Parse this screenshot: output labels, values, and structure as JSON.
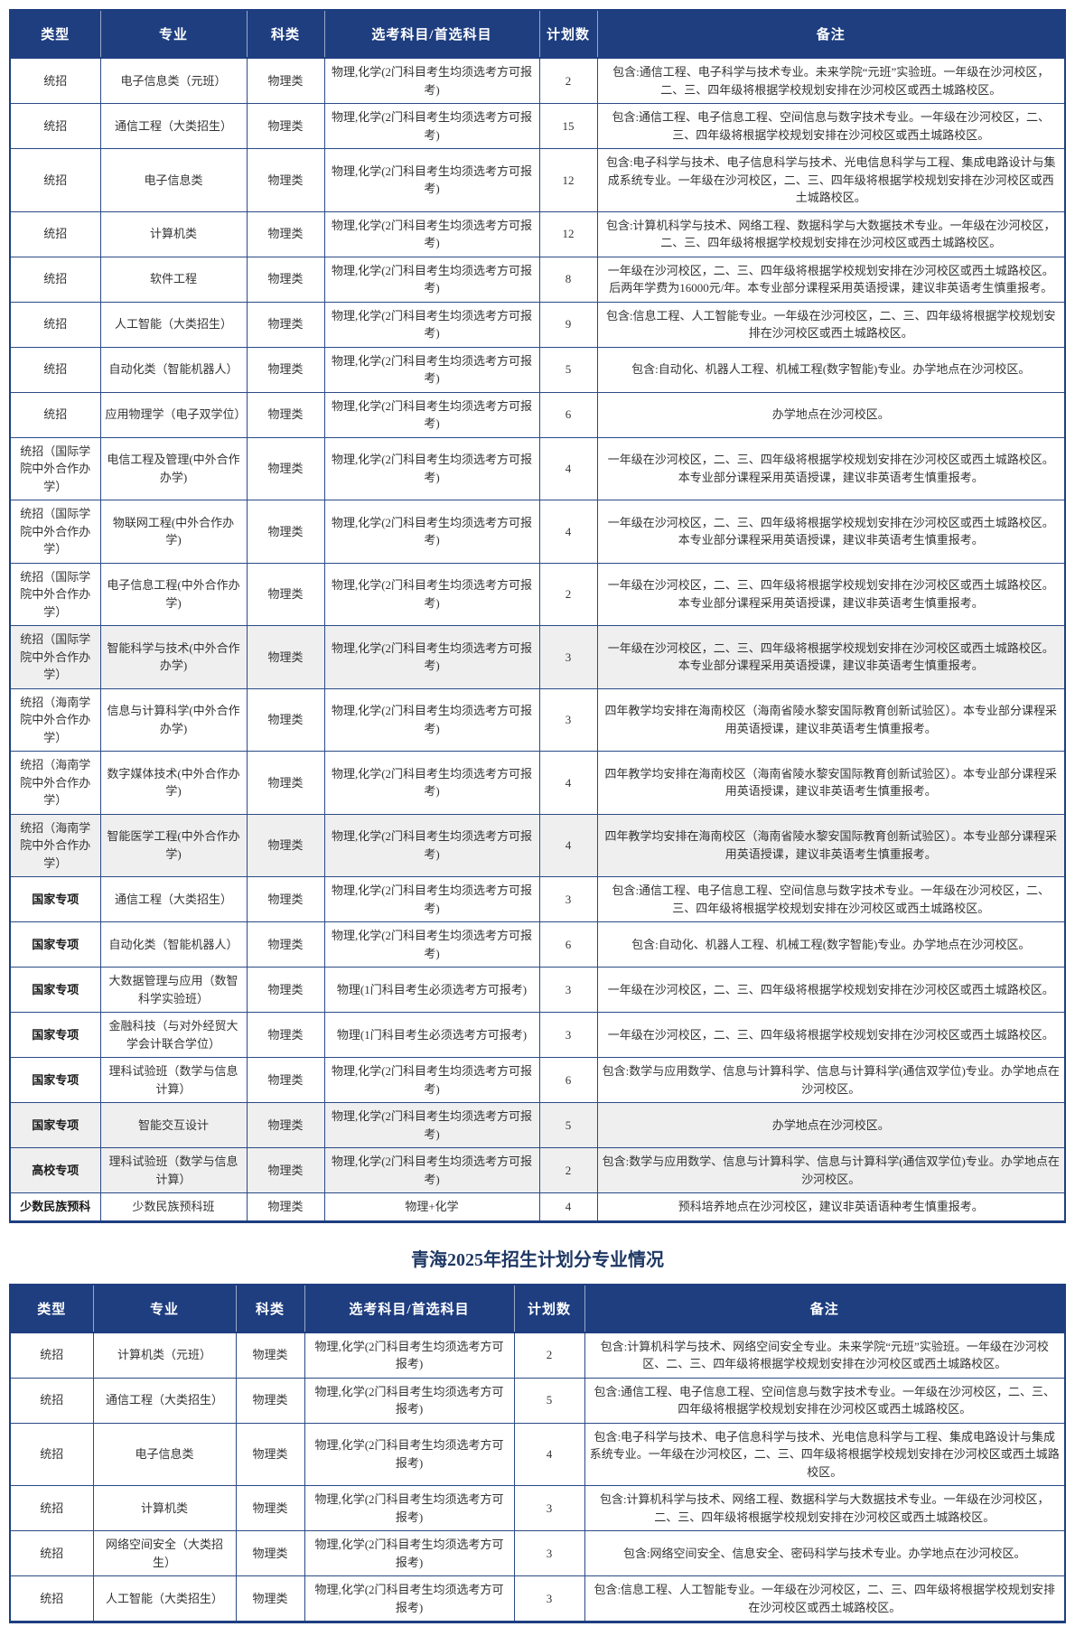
{
  "colors": {
    "header_bg": "#1e3e80",
    "border": "#2b4a86",
    "shaded_row_bg": "#efefef",
    "body_text": "#333333",
    "title_text": "#1f3864"
  },
  "columns": [
    "类型",
    "专业",
    "科类",
    "选考科目/首选科目",
    "计划数",
    "备注"
  ],
  "tables": [
    {
      "rows": [
        {
          "type": "统招",
          "major": "电子信息类（元班）",
          "category": "物理类",
          "subjects": "物理,化学(2门科目考生均须选考方可报考)",
          "plan": "2",
          "remark": "包含:通信工程、电子科学与技术专业。未来学院“元班”实验班。一年级在沙河校区，二、三、四年级将根据学校规划安排在沙河校区或西土城路校区。",
          "shaded": false,
          "bold_type": false
        },
        {
          "type": "统招",
          "major": "通信工程（大类招生）",
          "category": "物理类",
          "subjects": "物理,化学(2门科目考生均须选考方可报考)",
          "plan": "15",
          "remark": "包含:通信工程、电子信息工程、空间信息与数字技术专业。一年级在沙河校区，二、三、四年级将根据学校规划安排在沙河校区或西土城路校区。",
          "shaded": false,
          "bold_type": false
        },
        {
          "type": "统招",
          "major": "电子信息类",
          "category": "物理类",
          "subjects": "物理,化学(2门科目考生均须选考方可报考)",
          "plan": "12",
          "remark": "包含:电子科学与技术、电子信息科学与技术、光电信息科学与工程、集成电路设计与集成系统专业。一年级在沙河校区，二、三、四年级将根据学校规划安排在沙河校区或西土城路校区。",
          "shaded": false,
          "bold_type": false
        },
        {
          "type": "统招",
          "major": "计算机类",
          "category": "物理类",
          "subjects": "物理,化学(2门科目考生均须选考方可报考)",
          "plan": "12",
          "remark": "包含:计算机科学与技术、网络工程、数据科学与大数据技术专业。一年级在沙河校区，二、三、四年级将根据学校规划安排在沙河校区或西土城路校区。",
          "shaded": false,
          "bold_type": false
        },
        {
          "type": "统招",
          "major": "软件工程",
          "category": "物理类",
          "subjects": "物理,化学(2门科目考生均须选考方可报考)",
          "plan": "8",
          "remark": "一年级在沙河校区，二、三、四年级将根据学校规划安排在沙河校区或西土城路校区。后两年学费为16000元/年。本专业部分课程采用英语授课，建议非英语考生慎重报考。",
          "shaded": false,
          "bold_type": false
        },
        {
          "type": "统招",
          "major": "人工智能（大类招生）",
          "category": "物理类",
          "subjects": "物理,化学(2门科目考生均须选考方可报考)",
          "plan": "9",
          "remark": "包含:信息工程、人工智能专业。一年级在沙河校区，二、三、四年级将根据学校规划安排在沙河校区或西土城路校区。",
          "shaded": false,
          "bold_type": false
        },
        {
          "type": "统招",
          "major": "自动化类（智能机器人）",
          "category": "物理类",
          "subjects": "物理,化学(2门科目考生均须选考方可报考)",
          "plan": "5",
          "remark": "包含:自动化、机器人工程、机械工程(数字智能)专业。办学地点在沙河校区。",
          "shaded": false,
          "bold_type": false
        },
        {
          "type": "统招",
          "major": "应用物理学（电子双学位）",
          "category": "物理类",
          "subjects": "物理,化学(2门科目考生均须选考方可报考)",
          "plan": "6",
          "remark": "办学地点在沙河校区。",
          "shaded": false,
          "bold_type": false
        },
        {
          "type": "统招（国际学院中外合作办学）",
          "major": "电信工程及管理(中外合作办学)",
          "category": "物理类",
          "subjects": "物理,化学(2门科目考生均须选考方可报考)",
          "plan": "4",
          "remark": "一年级在沙河校区，二、三、四年级将根据学校规划安排在沙河校区或西土城路校区。本专业部分课程采用英语授课，建议非英语考生慎重报考。",
          "shaded": false,
          "bold_type": false
        },
        {
          "type": "统招（国际学院中外合作办学）",
          "major": "物联网工程(中外合作办学)",
          "category": "物理类",
          "subjects": "物理,化学(2门科目考生均须选考方可报考)",
          "plan": "4",
          "remark": "一年级在沙河校区，二、三、四年级将根据学校规划安排在沙河校区或西土城路校区。本专业部分课程采用英语授课，建议非英语考生慎重报考。",
          "shaded": false,
          "bold_type": false
        },
        {
          "type": "统招（国际学院中外合作办学）",
          "major": "电子信息工程(中外合作办学)",
          "category": "物理类",
          "subjects": "物理,化学(2门科目考生均须选考方可报考)",
          "plan": "2",
          "remark": "一年级在沙河校区，二、三、四年级将根据学校规划安排在沙河校区或西土城路校区。本专业部分课程采用英语授课，建议非英语考生慎重报考。",
          "shaded": false,
          "bold_type": false
        },
        {
          "type": "统招（国际学院中外合作办学）",
          "major": "智能科学与技术(中外合作办学)",
          "category": "物理类",
          "subjects": "物理,化学(2门科目考生均须选考方可报考)",
          "plan": "3",
          "remark": "一年级在沙河校区，二、三、四年级将根据学校规划安排在沙河校区或西土城路校区。本专业部分课程采用英语授课，建议非英语考生慎重报考。",
          "shaded": true,
          "bold_type": false
        },
        {
          "type": "统招（海南学院中外合作办学）",
          "major": "信息与计算科学(中外合作办学)",
          "category": "物理类",
          "subjects": "物理,化学(2门科目考生均须选考方可报考)",
          "plan": "3",
          "remark": "四年教学均安排在海南校区（海南省陵水黎安国际教育创新试验区）。本专业部分课程采用英语授课，建议非英语考生慎重报考。",
          "shaded": false,
          "bold_type": false
        },
        {
          "type": "统招（海南学院中外合作办学）",
          "major": "数字媒体技术(中外合作办学)",
          "category": "物理类",
          "subjects": "物理,化学(2门科目考生均须选考方可报考)",
          "plan": "4",
          "remark": "四年教学均安排在海南校区（海南省陵水黎安国际教育创新试验区）。本专业部分课程采用英语授课，建议非英语考生慎重报考。",
          "shaded": false,
          "bold_type": false
        },
        {
          "type": "统招（海南学院中外合作办学）",
          "major": "智能医学工程(中外合作办学)",
          "category": "物理类",
          "subjects": "物理,化学(2门科目考生均须选考方可报考)",
          "plan": "4",
          "remark": "四年教学均安排在海南校区（海南省陵水黎安国际教育创新试验区）。本专业部分课程采用英语授课，建议非英语考生慎重报考。",
          "shaded": true,
          "bold_type": false
        },
        {
          "type": "国家专项",
          "major": "通信工程（大类招生）",
          "category": "物理类",
          "subjects": "物理,化学(2门科目考生均须选考方可报考)",
          "plan": "3",
          "remark": "包含:通信工程、电子信息工程、空间信息与数字技术专业。一年级在沙河校区，二、三、四年级将根据学校规划安排在沙河校区或西土城路校区。",
          "shaded": false,
          "bold_type": true
        },
        {
          "type": "国家专项",
          "major": "自动化类（智能机器人）",
          "category": "物理类",
          "subjects": "物理,化学(2门科目考生均须选考方可报考)",
          "plan": "6",
          "remark": "包含:自动化、机器人工程、机械工程(数字智能)专业。办学地点在沙河校区。",
          "shaded": false,
          "bold_type": true
        },
        {
          "type": "国家专项",
          "major": "大数据管理与应用（数智科学实验班）",
          "category": "物理类",
          "subjects": "物理(1门科目考生必须选考方可报考)",
          "plan": "3",
          "remark": "一年级在沙河校区，二、三、四年级将根据学校规划安排在沙河校区或西土城路校区。",
          "shaded": false,
          "bold_type": true
        },
        {
          "type": "国家专项",
          "major": "金融科技（与对外经贸大学会计联合学位）",
          "category": "物理类",
          "subjects": "物理(1门科目考生必须选考方可报考)",
          "plan": "3",
          "remark": "一年级在沙河校区，二、三、四年级将根据学校规划安排在沙河校区或西土城路校区。",
          "shaded": false,
          "bold_type": true
        },
        {
          "type": "国家专项",
          "major": "理科试验班（数学与信息计算）",
          "category": "物理类",
          "subjects": "物理,化学(2门科目考生均须选考方可报考)",
          "plan": "6",
          "remark": "包含:数学与应用数学、信息与计算科学、信息与计算科学(通信双学位)专业。办学地点在沙河校区。",
          "shaded": false,
          "bold_type": true
        },
        {
          "type": "国家专项",
          "major": "智能交互设计",
          "category": "物理类",
          "subjects": "物理,化学(2门科目考生均须选考方可报考)",
          "plan": "5",
          "remark": "办学地点在沙河校区。",
          "shaded": true,
          "bold_type": true
        },
        {
          "type": "高校专项",
          "major": "理科试验班（数学与信息计算）",
          "category": "物理类",
          "subjects": "物理,化学(2门科目考生均须选考方可报考)",
          "plan": "2",
          "remark": "包含:数学与应用数学、信息与计算科学、信息与计算科学(通信双学位)专业。办学地点在沙河校区。",
          "shaded": true,
          "bold_type": true
        },
        {
          "type": "少数民族预科",
          "major": "少数民族预科班",
          "category": "物理类",
          "subjects": "物理+化学",
          "plan": "4",
          "remark": "预科培养地点在沙河校区，建议非英语语种考生慎重报考。",
          "shaded": false,
          "bold_type": true
        }
      ]
    },
    {
      "title": "青海2025年招生计划分专业情况",
      "rows": [
        {
          "type": "统招",
          "major": "计算机类（元班）",
          "category": "物理类",
          "subjects": "物理,化学(2门科目考生均须选考方可报考)",
          "plan": "2",
          "remark": "包含:计算机科学与技术、网络空间安全专业。未来学院“元班”实验班。一年级在沙河校区、二、三、四年级将根据学校规划安排在沙河校区或西土城路校区。",
          "shaded": false,
          "bold_type": false
        },
        {
          "type": "统招",
          "major": "通信工程（大类招生）",
          "category": "物理类",
          "subjects": "物理,化学(2门科目考生均须选考方可报考)",
          "plan": "5",
          "remark": "包含:通信工程、电子信息工程、空间信息与数字技术专业。一年级在沙河校区，二、三、四年级将根据学校规划安排在沙河校区或西土城路校区。",
          "shaded": false,
          "bold_type": false
        },
        {
          "type": "统招",
          "major": "电子信息类",
          "category": "物理类",
          "subjects": "物理,化学(2门科目考生均须选考方可报考)",
          "plan": "4",
          "remark": "包含:电子科学与技术、电子信息科学与技术、光电信息科学与工程、集成电路设计与集成系统专业。一年级在沙河校区，二、三、四年级将根据学校规划安排在沙河校区或西土城路校区。",
          "shaded": false,
          "bold_type": false
        },
        {
          "type": "统招",
          "major": "计算机类",
          "category": "物理类",
          "subjects": "物理,化学(2门科目考生均须选考方可报考)",
          "plan": "3",
          "remark": "包含:计算机科学与技术、网络工程、数据科学与大数据技术专业。一年级在沙河校区，二、三、四年级将根据学校规划安排在沙河校区或西土城路校区。",
          "shaded": false,
          "bold_type": false
        },
        {
          "type": "统招",
          "major": "网络空间安全（大类招生）",
          "category": "物理类",
          "subjects": "物理,化学(2门科目考生均须选考方可报考)",
          "plan": "3",
          "remark": "包含:网络空间安全、信息安全、密码科学与技术专业。办学地点在沙河校区。",
          "shaded": false,
          "bold_type": false
        },
        {
          "type": "统招",
          "major": "人工智能（大类招生）",
          "category": "物理类",
          "subjects": "物理,化学(2门科目考生均须选考方可报考)",
          "plan": "3",
          "remark": "包含:信息工程、人工智能专业。一年级在沙河校区，二、三、四年级将根据学校规划安排在沙河校区或西土城路校区。",
          "shaded": false,
          "bold_type": false
        }
      ]
    }
  ]
}
